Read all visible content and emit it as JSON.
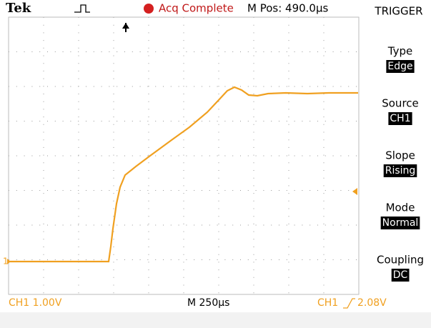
{
  "header": {
    "brand": "Tek",
    "status": "Acq Complete",
    "position": "M Pos: 490.0µs"
  },
  "channel_marker": "1",
  "menu": {
    "title": "TRIGGER",
    "items": [
      {
        "label": "Type",
        "value": "Edge"
      },
      {
        "label": "Source",
        "value": "CH1"
      },
      {
        "label": "Slope",
        "value": "Rising"
      },
      {
        "label": "Mode",
        "value": "Normal"
      },
      {
        "label": "Coupling",
        "value": "DC"
      }
    ]
  },
  "footer": {
    "channel_scale": "CH1 1.00V",
    "timebase": "M 250µs",
    "trigger_source": "CH1",
    "trigger_level": "2.08V"
  }
}
